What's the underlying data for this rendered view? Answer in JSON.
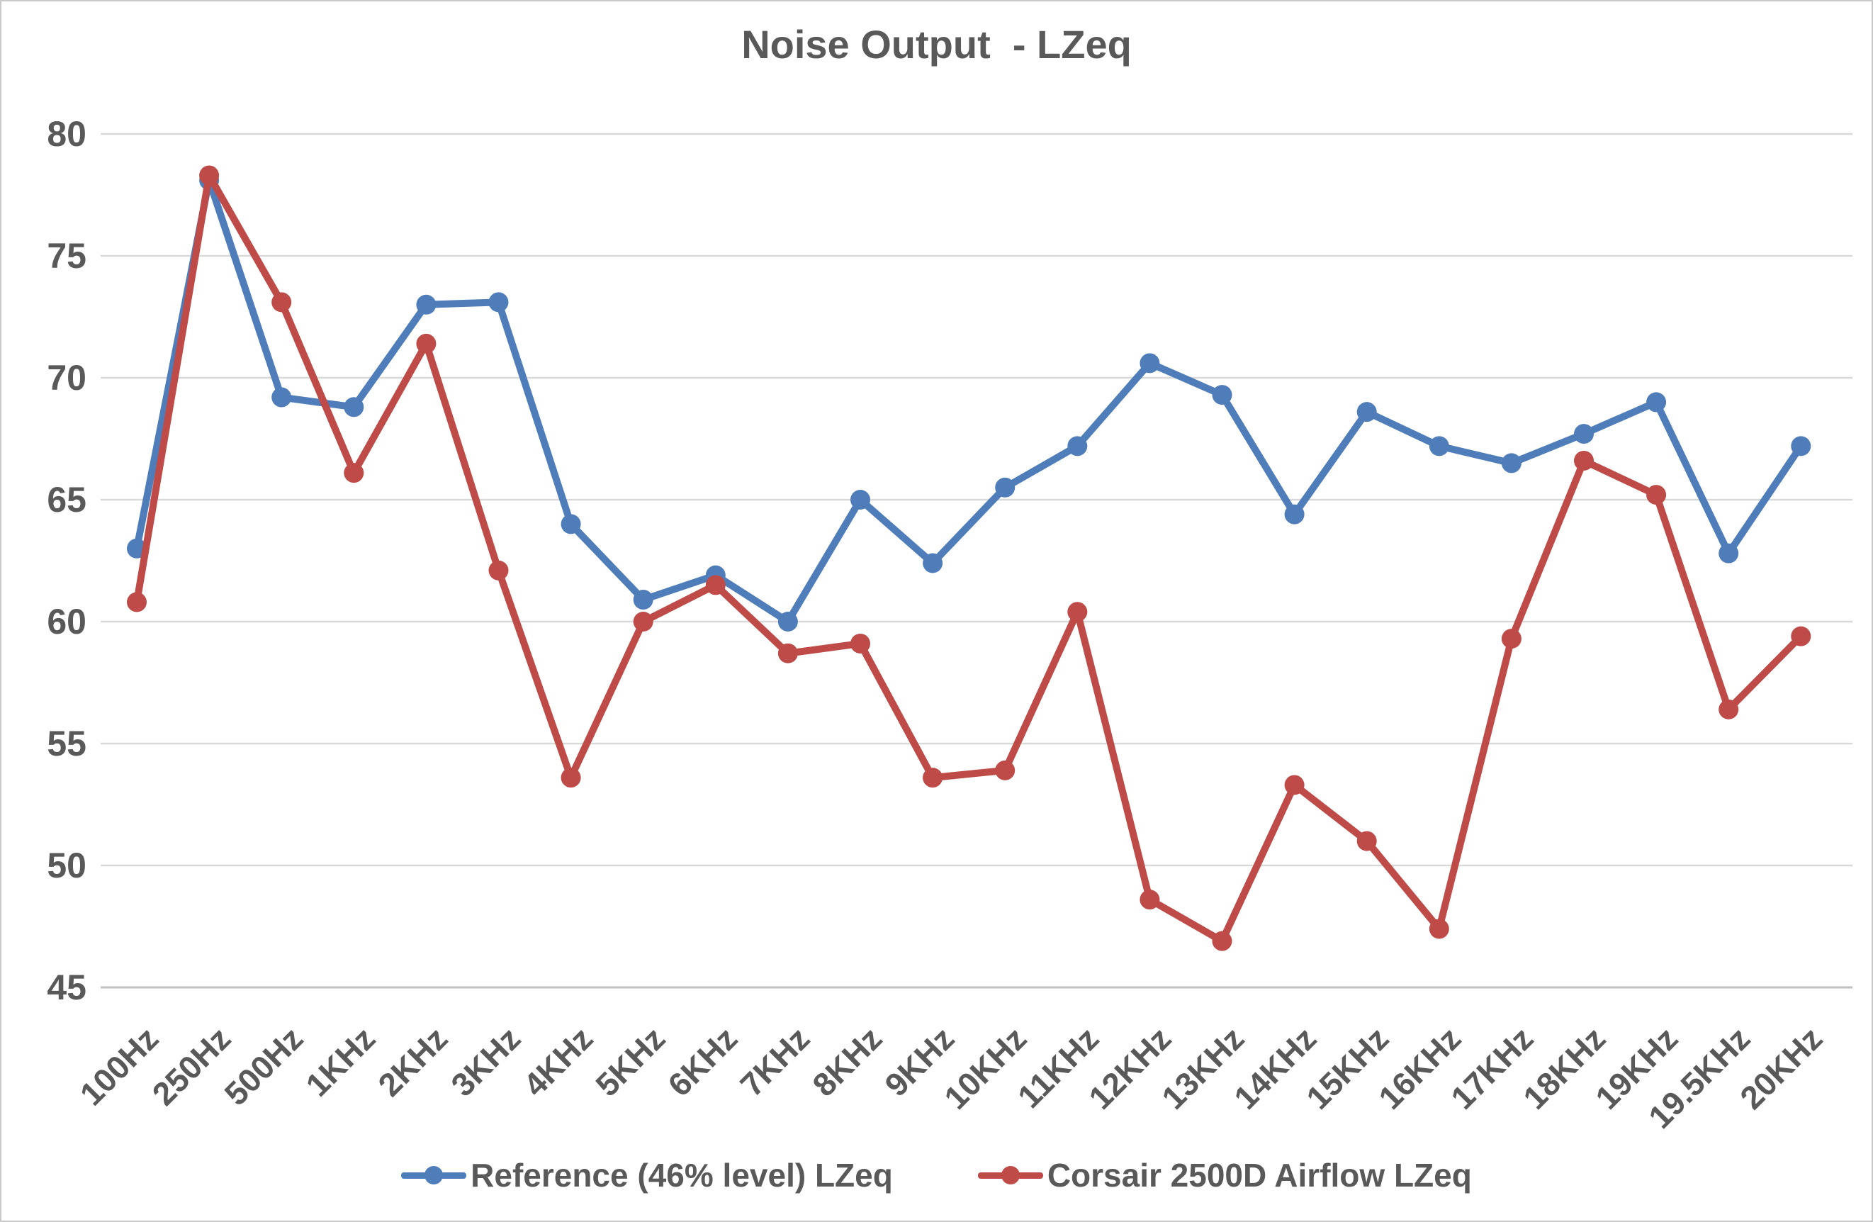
{
  "title": "Noise Output  - LZeq",
  "chart_data": {
    "type": "line",
    "title": "Noise Output  - LZeq",
    "xlabel": "",
    "ylabel": "",
    "ylim": [
      45,
      80
    ],
    "yticks": [
      80,
      75,
      70,
      65,
      60,
      55,
      50,
      45
    ],
    "grid": true,
    "legend_position": "bottom",
    "text_color": "#595959",
    "gridline_color": "#d9d9d9",
    "categories": [
      "100Hz",
      "250Hz",
      "500Hz",
      "1KHz",
      "2KHz",
      "3KHz",
      "4KHz",
      "5KHz",
      "6KHz",
      "7KHz",
      "8KHz",
      "9KHz",
      "10KHz",
      "11KHz",
      "12KHz",
      "13KHz",
      "14KHz",
      "15KHz",
      "16KHz",
      "17KHz",
      "18KHz",
      "19KHz",
      "19.5KHz",
      "20KHz"
    ],
    "series": [
      {
        "name": "Reference (46% level) LZeq",
        "color": "#4e7dba",
        "values": [
          63.0,
          78.1,
          69.2,
          68.8,
          73.0,
          73.1,
          64.0,
          60.9,
          61.9,
          60.0,
          65.0,
          62.4,
          65.5,
          67.2,
          70.6,
          69.3,
          64.4,
          68.6,
          67.2,
          66.5,
          67.7,
          69.0,
          62.8,
          67.2
        ]
      },
      {
        "name": "Corsair 2500D Airflow LZeq",
        "color": "#be4b48",
        "values": [
          60.8,
          78.3,
          73.1,
          66.1,
          71.4,
          62.1,
          53.6,
          60.0,
          61.5,
          58.7,
          59.1,
          53.6,
          53.9,
          60.4,
          48.6,
          46.9,
          53.3,
          51.0,
          47.4,
          59.3,
          66.6,
          65.2,
          56.4,
          59.4
        ]
      }
    ]
  }
}
